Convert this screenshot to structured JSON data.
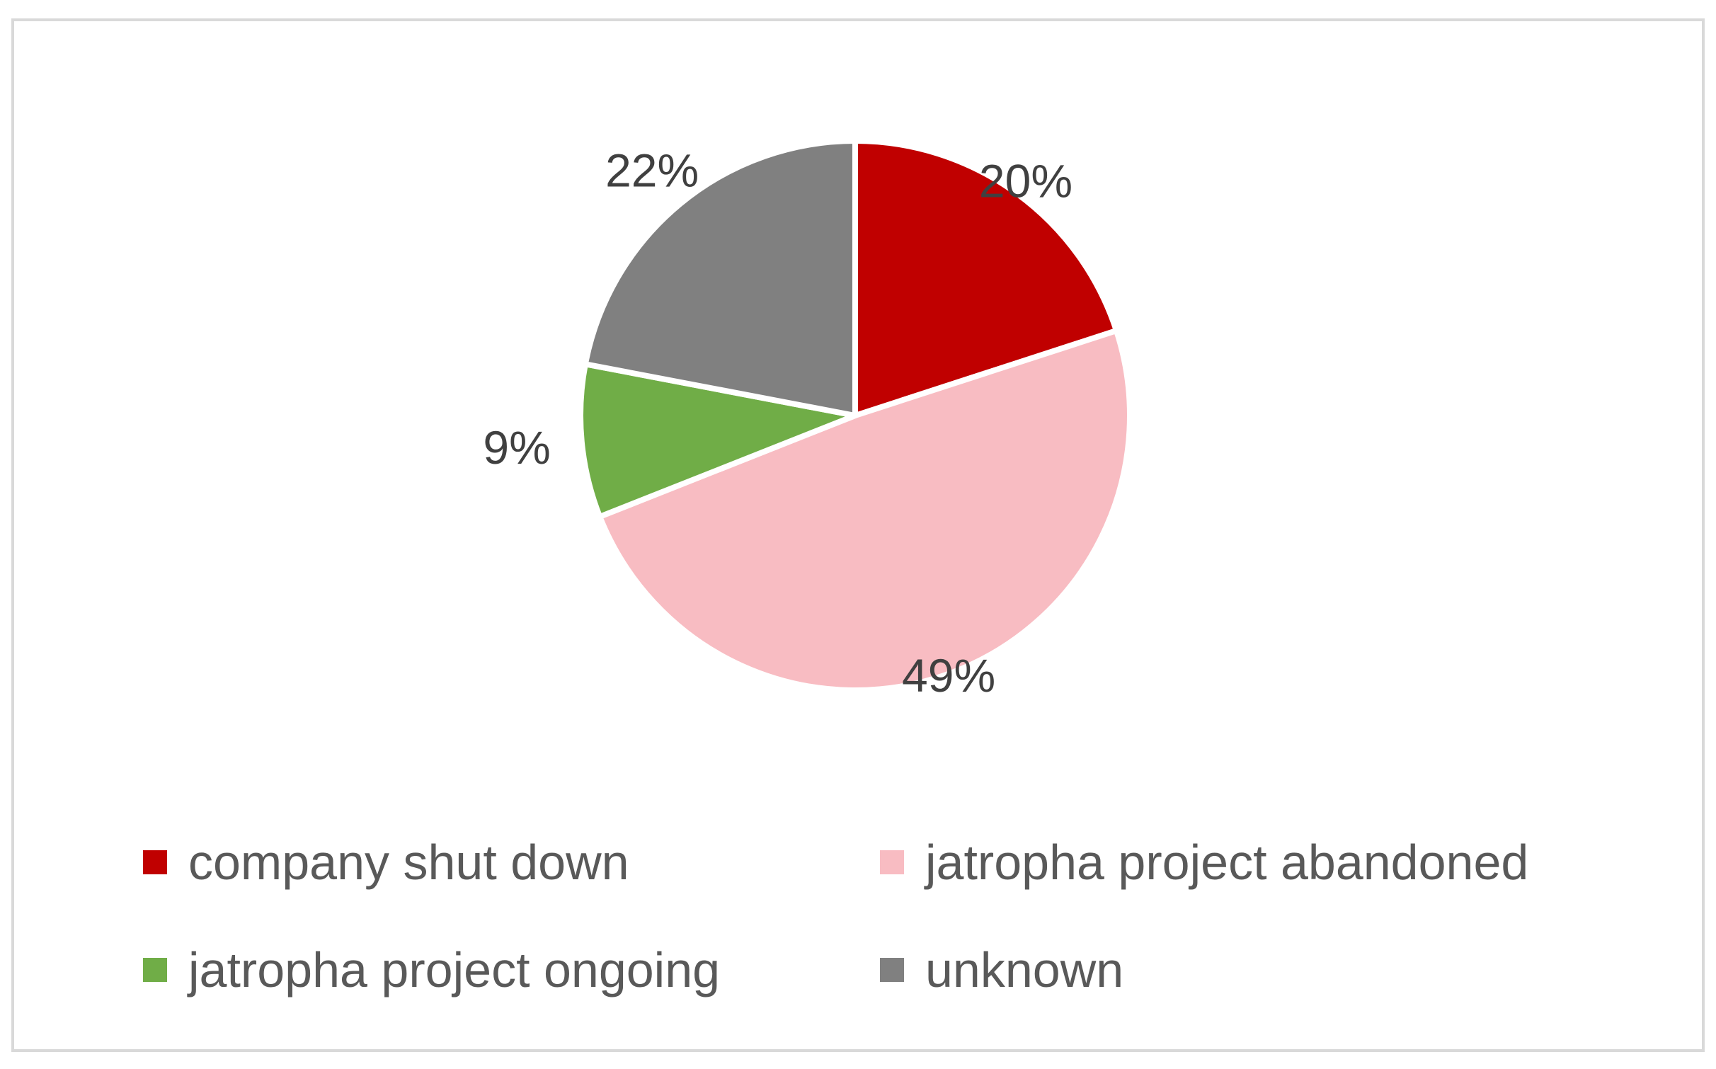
{
  "chart_data": {
    "type": "pie",
    "title": "",
    "slices": [
      {
        "label": "company shut down",
        "value": 20,
        "display": "20%",
        "color": "#C00000"
      },
      {
        "label": "jatropha project abandoned",
        "value": 49,
        "display": "49%",
        "color": "#F8BCC2"
      },
      {
        "label": "jatropha project ongoing",
        "value": 9,
        "display": "9%",
        "color": "#70AD47"
      },
      {
        "label": "unknown",
        "value": 22,
        "display": "22%",
        "color": "#808080"
      }
    ],
    "legend_position": "bottom",
    "start_angle": "12 o'clock",
    "direction": "clockwise"
  }
}
